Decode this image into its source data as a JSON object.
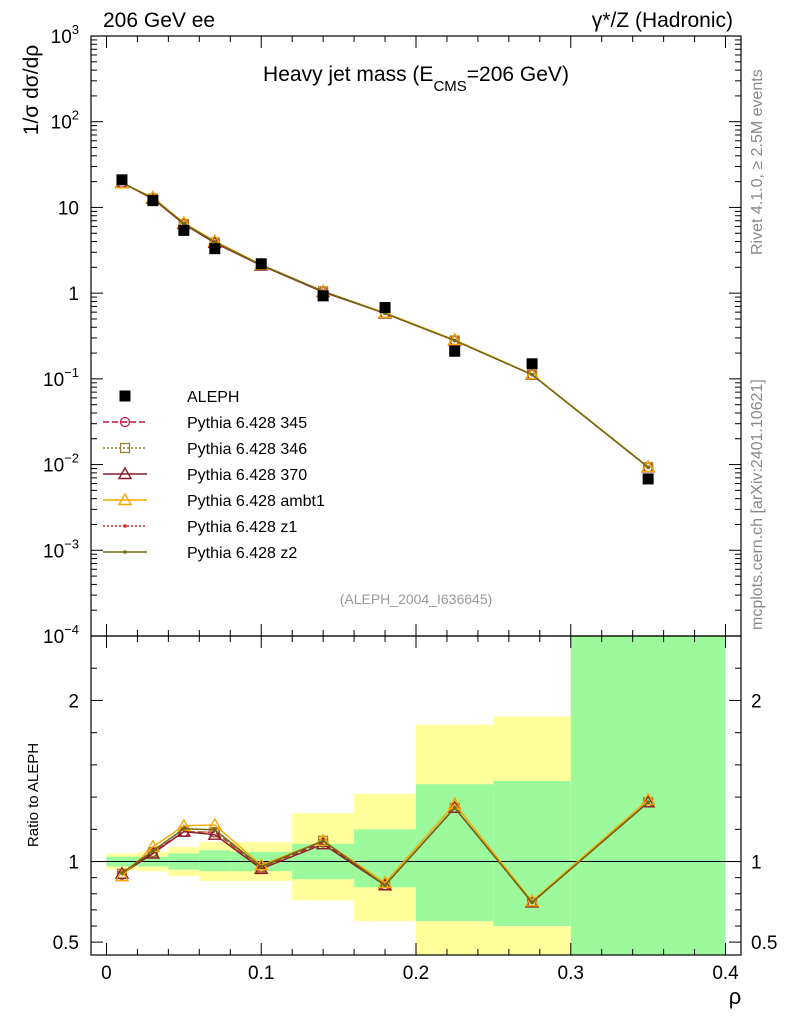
{
  "header": {
    "left": "206 GeV ee",
    "right": "γ*/Z (Hadronic)"
  },
  "side_label": {
    "rivet": "Rivet 4.1.0, ≥ 2.5M events",
    "site": "mcplots.cern.ch [arXiv:2401.10621]"
  },
  "chart_data": {
    "type": "line",
    "title": "Heavy jet mass (E",
    "title_sub": "CMS",
    "title_end": "=206 GeV)",
    "xlabel": "ρ",
    "ylabel": "1/σ dσ/dρ",
    "ratio_ylabel": "Ratio to ALEPH",
    "analysis_tag": "(ALEPH_2004_I636645)",
    "xlim": [
      -0.01,
      0.41
    ],
    "ylim_log": [
      0.0001,
      1000
    ],
    "ratio_ylim": [
      0.42,
      2.4
    ],
    "x_ticks": [
      "0",
      "0.1",
      "0.2",
      "0.3",
      "0.4"
    ],
    "x_tick_values": [
      0,
      0.1,
      0.2,
      0.3,
      0.4
    ],
    "y_ticks": [
      {
        "value": 1000,
        "base": "10",
        "exp": "3"
      },
      {
        "value": 100,
        "base": "10",
        "exp": "2"
      },
      {
        "value": 10,
        "base": "10",
        "exp": ""
      },
      {
        "value": 1,
        "base": "1",
        "exp": ""
      },
      {
        "value": 0.1,
        "base": "10",
        "exp": "−1"
      },
      {
        "value": 0.01,
        "base": "10",
        "exp": "−2"
      },
      {
        "value": 0.001,
        "base": "10",
        "exp": "−3"
      },
      {
        "value": 0.0001,
        "base": "10",
        "exp": "−4"
      }
    ],
    "ratio_ticks": [
      {
        "value": 2,
        "label": "2"
      },
      {
        "value": 1,
        "label": "1"
      },
      {
        "value": 0.5,
        "label": "0.5"
      }
    ],
    "bins": [
      {
        "lo": 0.0,
        "hi": 0.02,
        "x": 0.01,
        "data": 21.0,
        "stat": [
          0.97,
          1.03
        ],
        "tot": [
          0.95,
          1.05
        ]
      },
      {
        "lo": 0.02,
        "hi": 0.04,
        "x": 0.03,
        "data": 12.0,
        "stat": [
          0.97,
          1.03
        ],
        "tot": [
          0.94,
          1.06
        ]
      },
      {
        "lo": 0.04,
        "hi": 0.06,
        "x": 0.05,
        "data": 5.4,
        "stat": [
          0.95,
          1.05
        ],
        "tot": [
          0.91,
          1.09
        ]
      },
      {
        "lo": 0.06,
        "hi": 0.08,
        "x": 0.07,
        "data": 3.3,
        "stat": [
          0.94,
          1.07
        ],
        "tot": [
          0.88,
          1.12
        ]
      },
      {
        "lo": 0.08,
        "hi": 0.12,
        "x": 0.1,
        "data": 2.2,
        "stat": [
          0.94,
          1.06
        ],
        "tot": [
          0.88,
          1.12
        ]
      },
      {
        "lo": 0.12,
        "hi": 0.16,
        "x": 0.14,
        "data": 0.93,
        "stat": [
          0.89,
          1.11
        ],
        "tot": [
          0.76,
          1.3
        ]
      },
      {
        "lo": 0.16,
        "hi": 0.2,
        "x": 0.18,
        "data": 0.68,
        "stat": [
          0.84,
          1.2
        ],
        "tot": [
          0.63,
          1.42
        ]
      },
      {
        "lo": 0.2,
        "hi": 0.25,
        "x": 0.225,
        "data": 0.21,
        "stat": [
          0.63,
          1.48
        ],
        "tot": [
          0.2,
          1.85
        ]
      },
      {
        "lo": 0.25,
        "hi": 0.3,
        "x": 0.275,
        "data": 0.15,
        "stat": [
          0.6,
          1.5
        ],
        "tot": [
          0.2,
          1.9
        ]
      },
      {
        "lo": 0.3,
        "hi": 0.4,
        "x": 0.35,
        "data": 0.0068,
        "stat": [
          0.2,
          2.4
        ],
        "tot": [
          0.2,
          2.4
        ]
      }
    ],
    "series": [
      {
        "name": "ALEPH",
        "color": "#000000",
        "dash": "",
        "marker": "square",
        "values": [
          21.0,
          12.0,
          5.4,
          3.3,
          2.2,
          0.93,
          0.68,
          0.21,
          0.15,
          0.0068
        ]
      },
      {
        "name": "Pythia 6.428 345",
        "color": "#c0143c",
        "dash": "6,3",
        "marker": "circle",
        "values": [
          19.3,
          12.7,
          6.4,
          3.9,
          2.12,
          1.04,
          0.58,
          0.28,
          0.112,
          0.0093
        ]
      },
      {
        "name": "Pythia 6.428 346",
        "color": "#a07a2a",
        "dash": "2,2",
        "marker": "square-open",
        "values": [
          19.4,
          12.7,
          6.4,
          3.9,
          2.12,
          1.05,
          0.58,
          0.28,
          0.112,
          0.0093
        ]
      },
      {
        "name": "Pythia 6.428 370",
        "color": "#8b1a2b",
        "dash": "",
        "marker": "triangle",
        "values": [
          19.4,
          12.6,
          6.4,
          3.85,
          2.1,
          1.03,
          0.58,
          0.28,
          0.112,
          0.0093
        ]
      },
      {
        "name": "Pythia 6.428 ambt1",
        "color": "#f5a800",
        "dash": "",
        "marker": "triangle",
        "values": [
          19.1,
          13.1,
          6.6,
          4.05,
          2.15,
          1.05,
          0.59,
          0.285,
          0.113,
          0.0094
        ]
      },
      {
        "name": "Pythia 6.428 z1",
        "color": "#e02020",
        "dash": "2,2",
        "marker": "dot",
        "values": [
          19.5,
          12.8,
          6.5,
          3.95,
          2.13,
          1.05,
          0.58,
          0.28,
          0.112,
          0.0093
        ]
      },
      {
        "name": "Pythia 6.428 z2",
        "color": "#6b6b10",
        "dash": "",
        "marker": "dot",
        "values": [
          19.5,
          12.8,
          6.5,
          3.95,
          2.13,
          1.05,
          0.58,
          0.28,
          0.112,
          0.0093
        ]
      }
    ],
    "colors": {
      "stat_band": "#9cfa9c",
      "tot_band": "#ffff9c",
      "axis": "#000000",
      "tag": "#999999",
      "side": "#888888"
    }
  }
}
